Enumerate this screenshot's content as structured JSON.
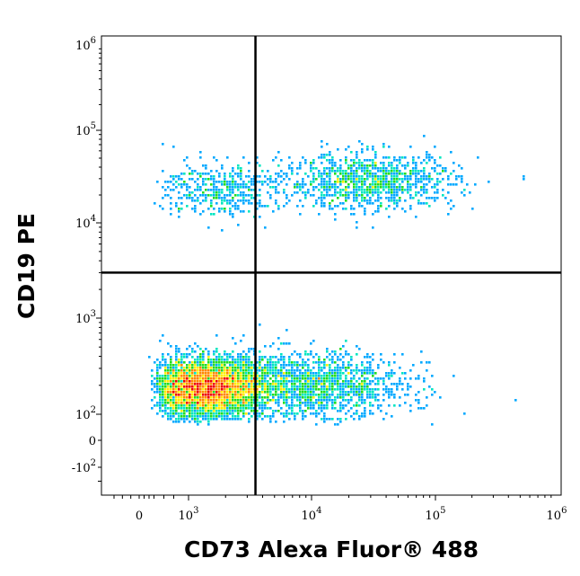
{
  "chart_data": {
    "type": "scatter",
    "title": "",
    "xlabel": "CD73 Alexa Fluor® 488",
    "ylabel": "CD19 PE",
    "x_scale": "biexponential (log above ~10^3)",
    "y_scale": "biexponential (log above ~10^2)",
    "xlim": [
      -300,
      1000000
    ],
    "ylim": [
      -300,
      1000000
    ],
    "x_ticks": [
      {
        "value": 0,
        "base": "0",
        "exp": ""
      },
      {
        "value": 1000,
        "base": "10",
        "exp": "3"
      },
      {
        "value": 10000,
        "base": "10",
        "exp": "4"
      },
      {
        "value": 100000,
        "base": "10",
        "exp": "5"
      },
      {
        "value": 1000000,
        "base": "10",
        "exp": "6"
      }
    ],
    "y_ticks": [
      {
        "value": -100,
        "base": "-10",
        "exp": "2"
      },
      {
        "value": 0,
        "base": "0",
        "exp": ""
      },
      {
        "value": 100,
        "base": "10",
        "exp": "2"
      },
      {
        "value": 1000,
        "base": "10",
        "exp": "3"
      },
      {
        "value": 10000,
        "base": "10",
        "exp": "4"
      },
      {
        "value": 100000,
        "base": "10",
        "exp": "5"
      },
      {
        "value": 1000000,
        "base": "10",
        "exp": "6"
      }
    ],
    "quadrant_gates": {
      "x": 3500,
      "y": 3000
    },
    "populations": [
      {
        "label": "CD19- CD73- (dense core)",
        "x_center": 1400,
        "y_center": 190,
        "count": 4200,
        "spread_x": 0.23,
        "spread_y": 0.15
      },
      {
        "label": "CD19- CD73+ tail",
        "x_center": 9000,
        "y_center": 200,
        "count": 1700,
        "spread_x": 0.4,
        "spread_y": 0.17
      },
      {
        "label": "CD19+ CD73+",
        "x_center": 30000,
        "y_center": 28000,
        "count": 1100,
        "spread_x": 0.35,
        "spread_y": 0.15
      },
      {
        "label": "CD19+ CD73-",
        "x_center": 1800,
        "y_center": 23000,
        "count": 450,
        "spread_x": 0.25,
        "spread_y": 0.15
      }
    ],
    "colormap": [
      "#1a1aff",
      "#00a8ff",
      "#00e5c0",
      "#22dd22",
      "#ffee00",
      "#ff8800",
      "#ee0000"
    ],
    "grid": false,
    "legend": "none"
  }
}
